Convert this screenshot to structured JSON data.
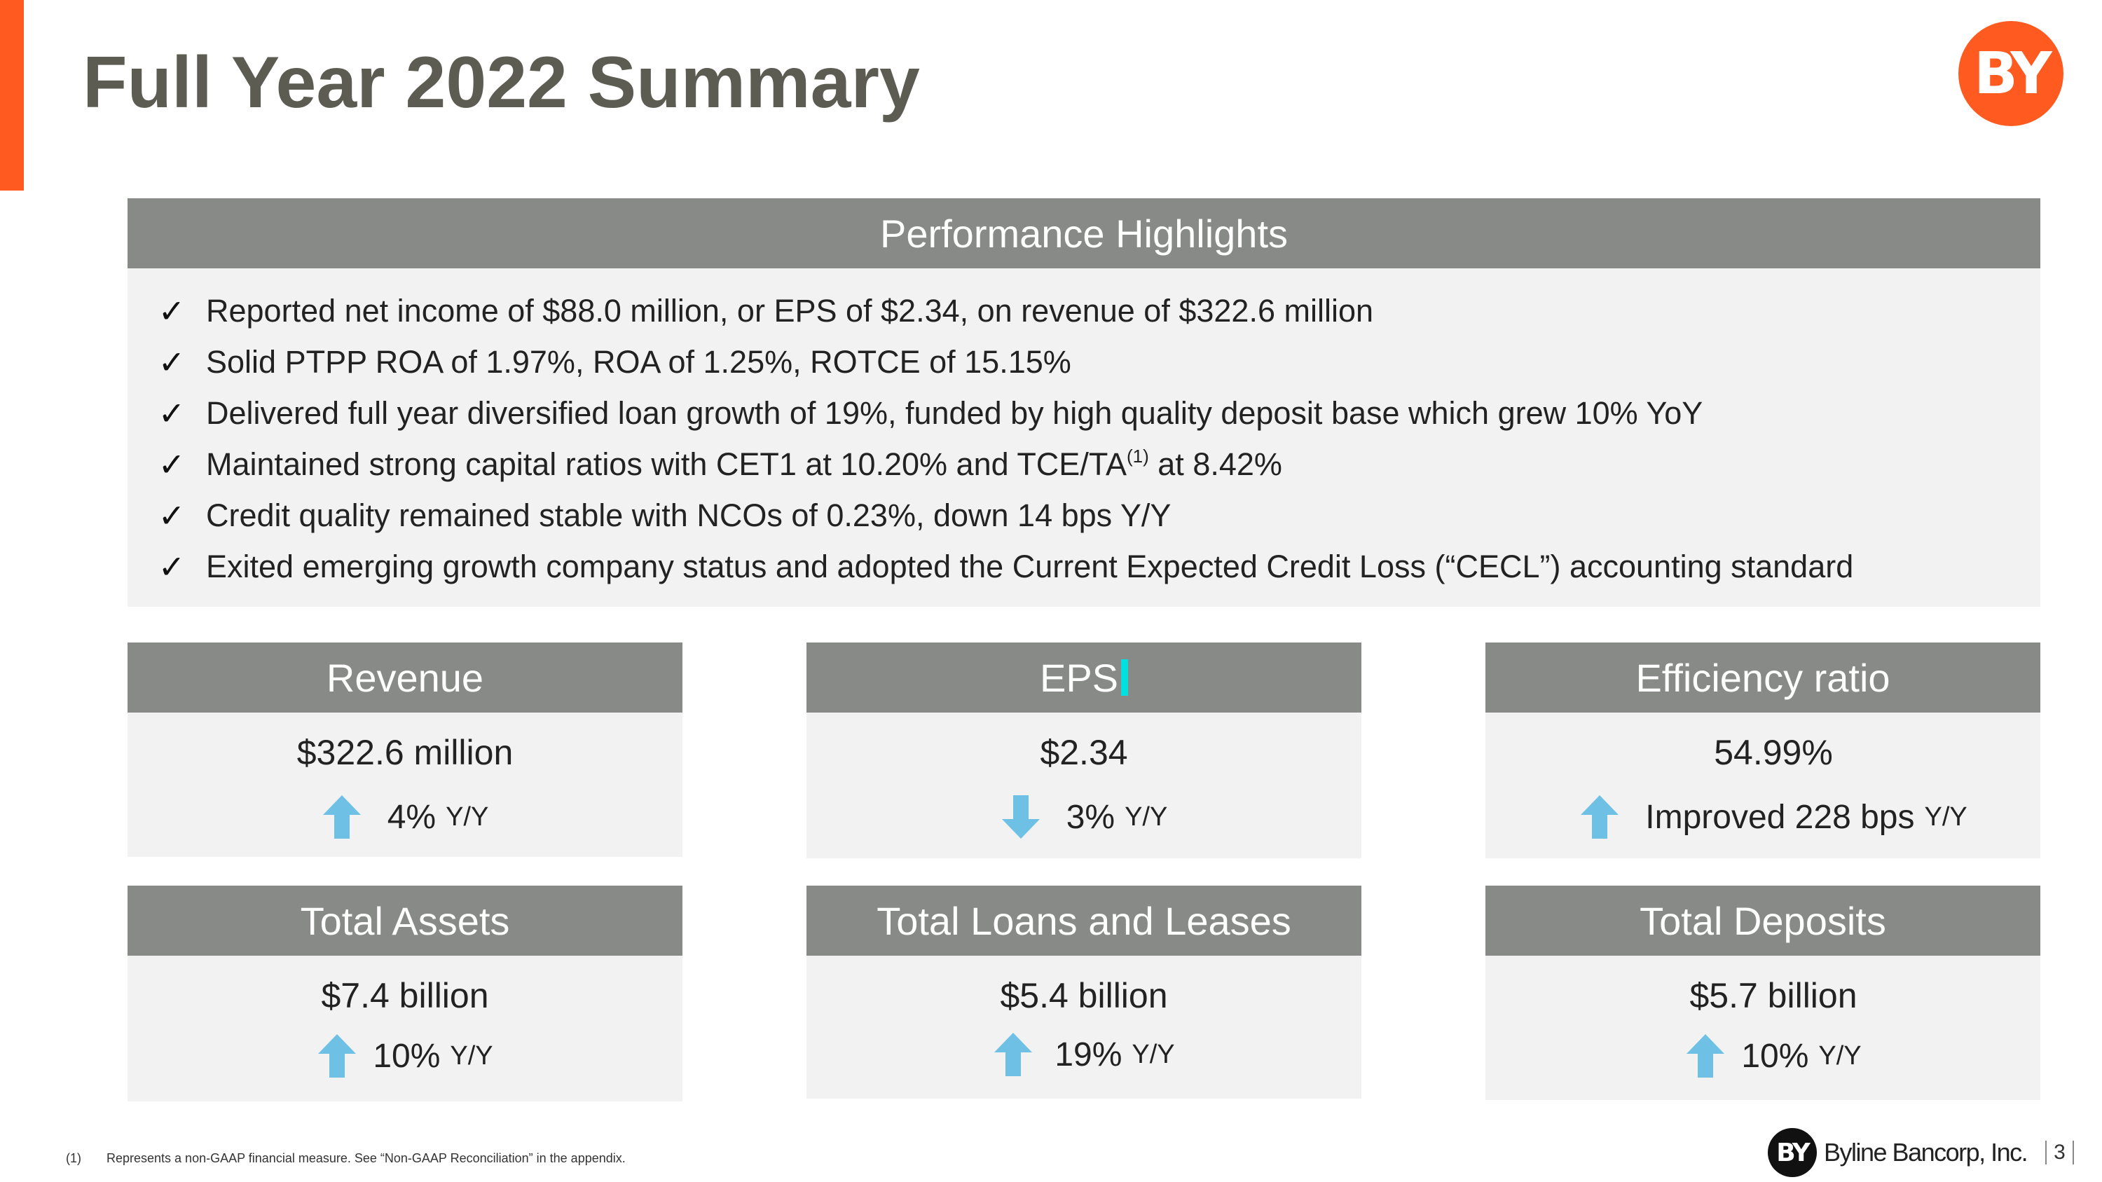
{
  "title": "Full Year 2022 Summary",
  "logo_text": "BY",
  "highlights": {
    "heading": "Performance Highlights",
    "check_glyph": "✓",
    "items": [
      "Reported net income of $88.0 million, or EPS of $2.34, on revenue of $322.6 million",
      "Solid PTPP ROA of 1.97%, ROA of 1.25%, ROTCE of 15.15%",
      "Delivered full year diversified loan growth of 19%, funded by high quality deposit base which grew 10% YoY",
      "Maintained strong capital ratios with CET1 at 10.20% and TCE/TA",
      "Credit quality remained stable with NCOs of 0.23%, down 14 bps Y/Y",
      "Exited emerging growth company status and adopted the Current Expected Credit Loss (“CECL”) accounting standard"
    ],
    "item4_note": "(1)",
    "item4_tail": " at 8.42%"
  },
  "cards": {
    "revenue": {
      "title": "Revenue",
      "value": "$322.6 million",
      "change": "4%",
      "unit": "Y/Y",
      "direction": "up"
    },
    "eps": {
      "title": "EPS",
      "value": "$2.34",
      "change": "3%",
      "unit": "Y/Y",
      "direction": "down"
    },
    "efficiency": {
      "title": "Efficiency ratio",
      "value": "54.99%",
      "change": "Improved 228 bps",
      "unit": "Y/Y",
      "direction": "up"
    },
    "assets": {
      "title": "Total Assets",
      "value": "$7.4 billion",
      "change": "10%",
      "unit": "Y/Y",
      "direction": "up"
    },
    "loans": {
      "title": "Total Loans and Leases",
      "value": "$5.4 billion",
      "change": "19%",
      "unit": "Y/Y",
      "direction": "up"
    },
    "deposits": {
      "title": "Total Deposits",
      "value": "$5.7 billion",
      "change": "10%",
      "unit": "Y/Y",
      "direction": "up"
    }
  },
  "footnote": {
    "number": "(1)",
    "text": "Represents a non-GAAP financial measure.  See “Non-GAAP Reconciliation” in the appendix."
  },
  "footer": {
    "logo_mark": "BY",
    "company": "Byline Bancorp, Inc.",
    "page": "3"
  },
  "colors": {
    "accent": "#ff5a1f",
    "header_gray": "#878a86",
    "panel": "#f2f2f2",
    "arrow": "#6ec1e4"
  }
}
